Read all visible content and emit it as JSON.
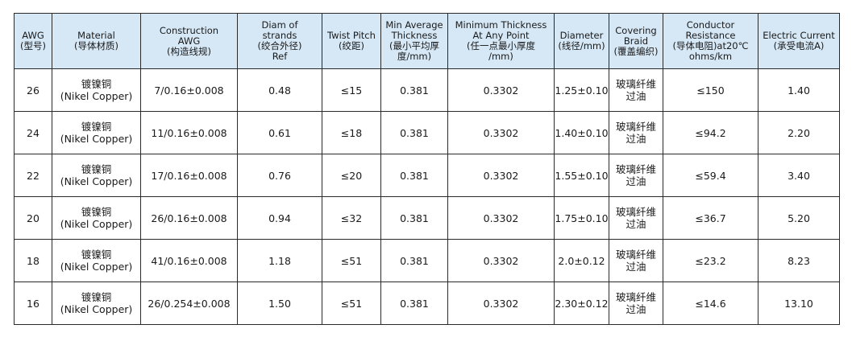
{
  "headers": [
    "AWG\n(型号)",
    "Material\n(导体材质)",
    "Construction\nAWG\n(构造线规)",
    "Diam of\nstrands\n(绞合外径)\nRef",
    "Twist Pitch\n(绞距)",
    "Min Average\nThickness\n(最小平均厚\n度/mm)",
    "Minimum Thickness\nAt Any Point\n(任一点最小厚度\n/mm)",
    "Diameter\n(线径/mm)",
    "Covering\nBraid\n(覆盖编织)",
    "Conductor\nResistance\n(导体电阻)at20℃\nohms/km",
    "Electric Current\n(承受电流A)"
  ],
  "rows": [
    {
      "awg": "26",
      "material_cn": "镀镍铜",
      "material_en": "(Nikel Copper)",
      "construction": "7/0.16±0.008",
      "diam_strands": "0.48",
      "twist_pitch": "≤15",
      "min_avg_thickness": "0.381",
      "min_thickness_point": "0.3302",
      "diameter": "1.25±0.10",
      "covering": "玻璃纤维\n过油",
      "resistance": "≤150",
      "current": "1.40"
    },
    {
      "awg": "24",
      "material_cn": "镀镍铜",
      "material_en": "(Nikel Copper)",
      "construction": "11/0.16±0.008",
      "diam_strands": "0.61",
      "twist_pitch": "≤18",
      "min_avg_thickness": "0.381",
      "min_thickness_point": "0.3302",
      "diameter": "1.40±0.10",
      "covering": "玻璃纤维\n过油",
      "resistance": "≤94.2",
      "current": "2.20"
    },
    {
      "awg": "22",
      "material_cn": "镀镍铜",
      "material_en": "(Nikel Copper)",
      "construction": "17/0.16±0.008",
      "diam_strands": "0.76",
      "twist_pitch": "≤20",
      "min_avg_thickness": "0.381",
      "min_thickness_point": "0.3302",
      "diameter": "1.55±0.10",
      "covering": "玻璃纤维\n过油",
      "resistance": "≤59.4",
      "current": "3.40"
    },
    {
      "awg": "20",
      "material_cn": "镀镍铜",
      "material_en": "(Nikel Copper)",
      "construction": "26/0.16±0.008",
      "diam_strands": "0.94",
      "twist_pitch": "≤32",
      "min_avg_thickness": "0.381",
      "min_thickness_point": "0.3302",
      "diameter": "1.75±0.10",
      "covering": "玻璃纤维\n过油",
      "resistance": "≤36.7",
      "current": "5.20"
    },
    {
      "awg": "18",
      "material_cn": "镀镍铜",
      "material_en": "(Nikel Copper)",
      "construction": "41/0.16±0.008",
      "diam_strands": "1.18",
      "twist_pitch": "≤51",
      "min_avg_thickness": "0.381",
      "min_thickness_point": "0.3302",
      "diameter": "2.0±0.12",
      "covering": "玻璃纤维\n过油",
      "resistance": "≤23.2",
      "current": "8.23"
    },
    {
      "awg": "16",
      "material_cn": "镀镍铜",
      "material_en": "(Nikel Copper)",
      "construction": "26/0.254±0.008",
      "diam_strands": "1.50",
      "twist_pitch": "≤51",
      "min_avg_thickness": "0.381",
      "min_thickness_point": "0.3302",
      "diameter": "2.30±0.12",
      "covering": "玻璃纤维\n过油",
      "resistance": "≤14.6",
      "current": "13.10"
    }
  ],
  "colors": {
    "header_bg": "#d6e8f6",
    "border": "#2a2a2a",
    "text": "#1a1a1a"
  }
}
